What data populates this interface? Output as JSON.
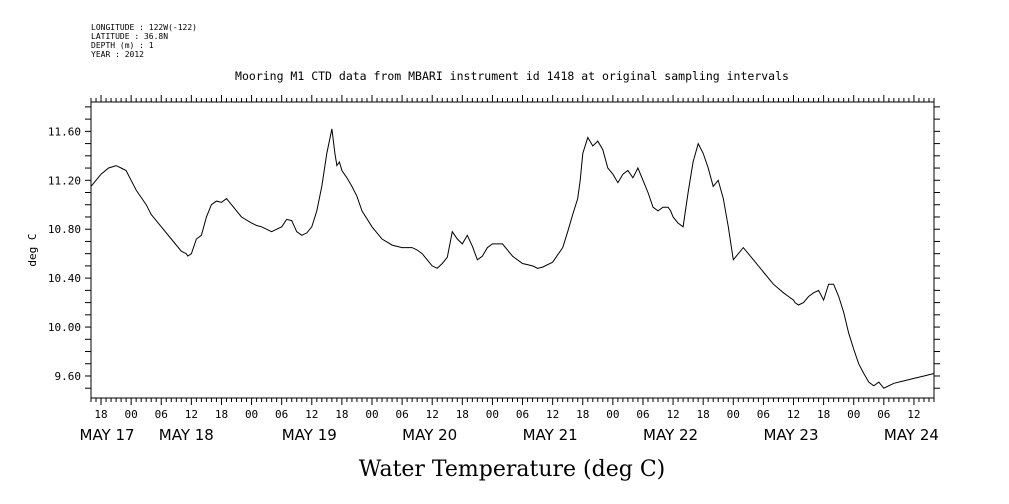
{
  "header": {
    "longitude": "LONGITUDE : 122W(-122)",
    "latitude": "LATITUDE : 36.8N",
    "depth": "DEPTH (m) : 1",
    "year": "YEAR : 2012"
  },
  "chart_data": {
    "type": "line",
    "title": "Mooring M1 CTD data from MBARI instrument id 1418 at original sampling intervals",
    "xlabel": "Water Temperature (deg C)",
    "ylabel": "deg C",
    "ylim": [
      9.42,
      11.84
    ],
    "xlim_hours": [
      -8,
      160
    ],
    "yticks": [
      9.6,
      10.0,
      10.4,
      10.8,
      11.2,
      11.6
    ],
    "ytick_labels": [
      "9.60",
      "10.00",
      "10.40",
      "10.80",
      "11.20",
      "11.60"
    ],
    "xtick_hours": [
      -6,
      0,
      6,
      12,
      18,
      24,
      30,
      36,
      42,
      48,
      54,
      60,
      66,
      72,
      78,
      84,
      90,
      96,
      102,
      108,
      114,
      120,
      126,
      132,
      138,
      144,
      150,
      156
    ],
    "xtick_labels": [
      "18",
      "00",
      "06",
      "12",
      "18",
      "00",
      "06",
      "12",
      "18",
      "00",
      "06",
      "12",
      "18",
      "00",
      "06",
      "12",
      "18",
      "00",
      "06",
      "12",
      "18",
      "00",
      "06",
      "12",
      "18",
      "00",
      "06",
      "12"
    ],
    "day_labels": [
      {
        "label": "MAY 17",
        "hour": -4.8
      },
      {
        "label": "MAY 18",
        "hour": 11
      },
      {
        "label": "MAY 19",
        "hour": 35.5
      },
      {
        "label": "MAY 20",
        "hour": 59.5
      },
      {
        "label": "MAY 21",
        "hour": 83.5
      },
      {
        "label": "MAY 22",
        "hour": 107.5
      },
      {
        "label": "MAY 23",
        "hour": 131.5
      },
      {
        "label": "MAY 24",
        "hour": 155.5
      }
    ],
    "series": [
      {
        "name": "Water Temperature",
        "hours": [
          -8,
          -6,
          -4.5,
          -3,
          -2,
          -1,
          0,
          1,
          3,
          4,
          6,
          8,
          10,
          11,
          11.3,
          12,
          13,
          14,
          15,
          16,
          17,
          18,
          19,
          20,
          22,
          24,
          25,
          26,
          28,
          29,
          30,
          31,
          32,
          33,
          34,
          35,
          36,
          37,
          38,
          39,
          40,
          40.6,
          41,
          41.5,
          42,
          43,
          44,
          45,
          46,
          48,
          50,
          52,
          54,
          56,
          57,
          58,
          59,
          60,
          61,
          62,
          63,
          64,
          65,
          66,
          67,
          68,
          69,
          70,
          71,
          72,
          74,
          76,
          78,
          80,
          81,
          82,
          84,
          86,
          87,
          88,
          89,
          89.5,
          90,
          91,
          92,
          93,
          94,
          95,
          96,
          97,
          98,
          99,
          100,
          101,
          102,
          103,
          104,
          105,
          106,
          107,
          107.5,
          108,
          109,
          110,
          111,
          112,
          113,
          114,
          115,
          116,
          117,
          118,
          119,
          120,
          121,
          122,
          124,
          126,
          128,
          130,
          131,
          132,
          132.3,
          133,
          134,
          135,
          136,
          137,
          138,
          139,
          140,
          141,
          142,
          143,
          144,
          145,
          146,
          147,
          148,
          149,
          150,
          152,
          154,
          156,
          158,
          160
        ],
        "values": [
          11.15,
          11.25,
          11.3,
          11.32,
          11.3,
          11.28,
          11.2,
          11.12,
          11.0,
          10.92,
          10.82,
          10.72,
          10.62,
          10.6,
          10.58,
          10.6,
          10.72,
          10.75,
          10.9,
          11.0,
          11.03,
          11.02,
          11.05,
          11.0,
          10.9,
          10.85,
          10.83,
          10.82,
          10.78,
          10.8,
          10.82,
          10.88,
          10.87,
          10.78,
          10.75,
          10.77,
          10.82,
          10.95,
          11.15,
          11.42,
          11.62,
          11.42,
          11.32,
          11.35,
          11.28,
          11.22,
          11.15,
          11.07,
          10.95,
          10.82,
          10.72,
          10.67,
          10.65,
          10.65,
          10.63,
          10.6,
          10.55,
          10.5,
          10.48,
          10.52,
          10.57,
          10.78,
          10.72,
          10.68,
          10.75,
          10.66,
          10.55,
          10.58,
          10.65,
          10.68,
          10.68,
          10.58,
          10.52,
          10.5,
          10.48,
          10.49,
          10.53,
          10.65,
          10.78,
          10.92,
          11.05,
          11.2,
          11.42,
          11.55,
          11.48,
          11.52,
          11.45,
          11.3,
          11.25,
          11.18,
          11.25,
          11.28,
          11.22,
          11.3,
          11.2,
          11.1,
          10.98,
          10.95,
          10.98,
          10.98,
          10.95,
          10.9,
          10.85,
          10.82,
          11.1,
          11.35,
          11.5,
          11.42,
          11.3,
          11.15,
          11.2,
          11.05,
          10.82,
          10.55,
          10.6,
          10.65,
          10.55,
          10.45,
          10.35,
          10.28,
          10.25,
          10.22,
          10.2,
          10.18,
          10.2,
          10.25,
          10.28,
          10.3,
          10.22,
          10.35,
          10.35,
          10.25,
          10.12,
          9.95,
          9.82,
          9.7,
          9.62,
          9.55,
          9.52,
          9.55,
          9.5,
          9.54,
          9.56,
          9.58,
          9.6,
          9.62
        ]
      }
    ]
  }
}
